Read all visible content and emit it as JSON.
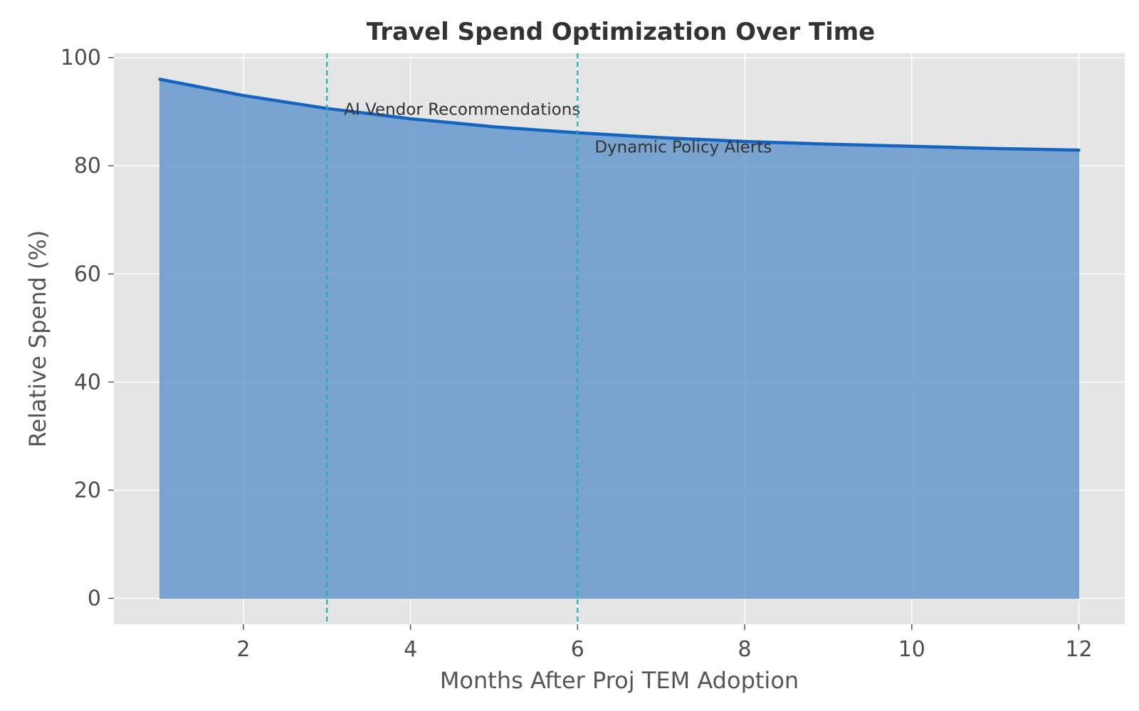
{
  "chart_data": {
    "type": "area",
    "title": "Travel Spend Optimization Over Time",
    "xlabel": "Months After Proj TEM Adoption",
    "ylabel": "Relative Spend (%)",
    "xlim": [
      0.45,
      12.55
    ],
    "ylim": [
      -4.8,
      100.8
    ],
    "x_ticks": [
      2,
      4,
      6,
      8,
      10,
      12
    ],
    "y_ticks": [
      0,
      20,
      40,
      60,
      80,
      100
    ],
    "grid": true,
    "series": [
      {
        "x": [
          1,
          2,
          3,
          4,
          5,
          6,
          7,
          8,
          9,
          10,
          11,
          12
        ],
        "values": [
          96,
          93,
          90.6,
          88.7,
          87.2,
          86.1,
          85.2,
          84.5,
          84,
          83.6,
          83.2,
          82.9
        ],
        "line_color": "#1565c0",
        "fill_color": "#6699cc"
      }
    ],
    "annotations": [
      {
        "x": 3,
        "label": "AI Vendor Recommendations",
        "label_y": 90.5,
        "line_color": "#20b2aa"
      },
      {
        "x": 6,
        "label": "Dynamic Policy Alerts",
        "label_y": 83.5,
        "line_color": "#20b2aa"
      }
    ],
    "colors": {
      "plot_background": "#e5e5e5",
      "grid": "#ffffff"
    }
  }
}
